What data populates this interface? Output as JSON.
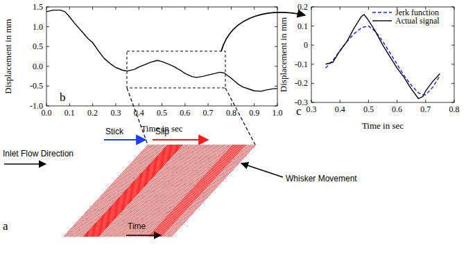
{
  "chart_data": [
    {
      "type": "line",
      "panel_label": "b",
      "x_label": "Time in sec",
      "y_label": "Displacement in mm",
      "xlim": [
        0,
        1
      ],
      "ylim": [
        -1,
        1.5
      ],
      "xticks": [
        {
          "value": 0,
          "label": "0.0"
        },
        0.1,
        0.2,
        0.3,
        0.4,
        0.5,
        0.6,
        0.7,
        0.8,
        0.9,
        {
          "value": 1,
          "label": "1.0"
        }
      ],
      "yticks": [
        {
          "value": -1,
          "label": "-1.0"
        },
        -0.5,
        {
          "value": 0,
          "label": "0.0"
        },
        0.5,
        {
          "value": 1,
          "label": "1.0"
        },
        1.5
      ],
      "grid": false,
      "color": "#000000",
      "line_style": "solid",
      "x": [
        0,
        0.03,
        0.06,
        0.08,
        0.1,
        0.12,
        0.15,
        0.18,
        0.2,
        0.23,
        0.25,
        0.28,
        0.3,
        0.33,
        0.35,
        0.38,
        0.4,
        0.43,
        0.45,
        0.48,
        0.5,
        0.53,
        0.55,
        0.58,
        0.6,
        0.63,
        0.65,
        0.68,
        0.7,
        0.73,
        0.75,
        0.77,
        0.8,
        0.83,
        0.85,
        0.88,
        0.9,
        0.93,
        0.95,
        0.98,
        1.0
      ],
      "values": [
        1.38,
        1.42,
        1.42,
        1.38,
        1.25,
        1.1,
        0.9,
        0.7,
        0.6,
        0.35,
        0.2,
        0.05,
        -0.03,
        -0.1,
        -0.12,
        -0.08,
        -0.02,
        0.05,
        0.1,
        0.15,
        0.12,
        0.05,
        0.0,
        -0.1,
        -0.18,
        -0.26,
        -0.28,
        -0.25,
        -0.22,
        -0.18,
        -0.15,
        -0.17,
        -0.3,
        -0.45,
        -0.52,
        -0.58,
        -0.62,
        -0.63,
        -0.6,
        -0.57,
        -0.56
      ]
    },
    {
      "type": "line",
      "panel_label": "c",
      "x_label": "Time in sec",
      "y_label": "Displacement in mm",
      "xlim": [
        0.3,
        0.8
      ],
      "ylim": [
        -0.3,
        0.2
      ],
      "xticks": [
        0.3,
        0.4,
        0.5,
        0.6,
        0.7,
        0.8
      ],
      "yticks": [
        -0.3,
        -0.2,
        -0.1,
        0,
        0.1,
        0.2
      ],
      "grid": false,
      "legend": "upper right",
      "x": [
        0.35,
        0.375,
        0.4,
        0.425,
        0.45,
        0.475,
        0.485,
        0.5,
        0.525,
        0.55,
        0.575,
        0.6,
        0.625,
        0.65,
        0.675,
        0.69,
        0.7,
        0.725,
        0.75
      ],
      "series": [
        {
          "name": "Jerk function",
          "color": "#1a1aff",
          "line_style": "dashed",
          "values": [
            -0.12,
            -0.08,
            -0.03,
            0.02,
            0.06,
            0.09,
            0.095,
            0.1,
            0.07,
            0.02,
            -0.04,
            -0.1,
            -0.16,
            -0.21,
            -0.25,
            -0.26,
            -0.26,
            -0.22,
            -0.16
          ]
        },
        {
          "name": "Actual signal",
          "color": "#000000",
          "line_style": "solid",
          "values": [
            -0.1,
            -0.09,
            -0.03,
            0.02,
            0.09,
            0.15,
            0.16,
            0.13,
            0.07,
            0.0,
            -0.06,
            -0.12,
            -0.17,
            -0.23,
            -0.28,
            -0.27,
            -0.24,
            -0.19,
            -0.15
          ]
        }
      ]
    }
  ],
  "diagram": {
    "panel_label": "a",
    "inlet": "Inlet Flow Direction",
    "stick": "Stick",
    "slip": "Slip",
    "whisker": "Whisker Movement",
    "time": "Time"
  }
}
